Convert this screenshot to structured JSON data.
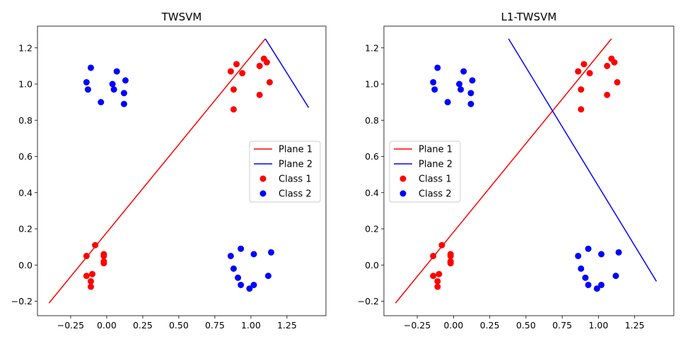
{
  "figure": {
    "background": "#ffffff"
  },
  "chart_data": [
    {
      "type": "scatter",
      "title": "TWSVM",
      "xlabel": "",
      "ylabel": "",
      "xlim": [
        -0.48,
        1.52
      ],
      "ylim": [
        -0.28,
        1.32
      ],
      "x_ticks": [
        -0.25,
        0.0,
        0.25,
        0.5,
        0.75,
        1.0,
        1.25
      ],
      "x_tick_labels": [
        "−0.25",
        "0.00",
        "0.25",
        "0.50",
        "0.75",
        "1.00",
        "1.25"
      ],
      "y_ticks": [
        -0.2,
        0.0,
        0.2,
        0.4,
        0.6,
        0.8,
        1.0,
        1.2
      ],
      "y_tick_labels": [
        "−0.2",
        "0.0",
        "0.2",
        "0.4",
        "0.6",
        "0.8",
        "1.0",
        "1.2"
      ],
      "grid": false,
      "legend_position": "center-right",
      "lines": [
        {
          "name": "Plane 1",
          "color": "#ff0000",
          "points": [
            [
              -0.4,
              -0.21
            ],
            [
              1.1,
              1.25
            ]
          ]
        },
        {
          "name": "Plane 2",
          "color": "#0000ff",
          "points": [
            [
              1.1,
              1.25
            ],
            [
              1.4,
              0.87
            ]
          ]
        }
      ],
      "scatter": [
        {
          "name": "Class 1",
          "color": "#ff0000",
          "points": [
            [
              -0.08,
              0.11
            ],
            [
              -0.14,
              0.05
            ],
            [
              -0.02,
              0.06
            ],
            [
              -0.02,
              0.05
            ],
            [
              -0.02,
              0.02
            ],
            [
              -0.02,
              0.01
            ],
            [
              -0.14,
              -0.06
            ],
            [
              -0.1,
              -0.05
            ],
            [
              -0.11,
              -0.09
            ],
            [
              -0.11,
              -0.12
            ],
            [
              0.86,
              1.07
            ],
            [
              0.9,
              1.11
            ],
            [
              0.94,
              1.06
            ],
            [
              1.06,
              1.1
            ],
            [
              1.09,
              1.14
            ],
            [
              1.11,
              1.12
            ],
            [
              0.88,
              0.97
            ],
            [
              1.13,
              1.01
            ],
            [
              1.06,
              0.94
            ],
            [
              0.88,
              0.86
            ]
          ]
        },
        {
          "name": "Class 2",
          "color": "#0000ff",
          "points": [
            [
              -0.11,
              1.09
            ],
            [
              0.07,
              1.07
            ],
            [
              0.13,
              1.02
            ],
            [
              -0.14,
              1.01
            ],
            [
              0.04,
              1.0
            ],
            [
              -0.13,
              0.97
            ],
            [
              0.05,
              0.97
            ],
            [
              0.12,
              0.95
            ],
            [
              -0.04,
              0.9
            ],
            [
              0.12,
              0.89
            ],
            [
              0.93,
              0.09
            ],
            [
              0.86,
              0.05
            ],
            [
              1.02,
              0.06
            ],
            [
              1.14,
              0.07
            ],
            [
              0.88,
              -0.02
            ],
            [
              0.91,
              -0.07
            ],
            [
              1.12,
              -0.06
            ],
            [
              0.93,
              -0.11
            ],
            [
              1.02,
              -0.11
            ],
            [
              0.99,
              -0.13
            ]
          ]
        }
      ]
    },
    {
      "type": "scatter",
      "title": "L1-TWSVM",
      "xlabel": "",
      "ylabel": "",
      "xlim": [
        -0.48,
        1.52
      ],
      "ylim": [
        -0.28,
        1.32
      ],
      "x_ticks": [
        -0.25,
        0.0,
        0.25,
        0.5,
        0.75,
        1.0,
        1.25
      ],
      "x_tick_labels": [
        "−0.25",
        "0.00",
        "0.25",
        "0.50",
        "0.75",
        "1.00",
        "1.25"
      ],
      "y_ticks": [
        -0.2,
        0.0,
        0.2,
        0.4,
        0.6,
        0.8,
        1.0,
        1.2
      ],
      "y_tick_labels": [
        "−0.2",
        "0.0",
        "0.2",
        "0.4",
        "0.6",
        "0.8",
        "1.0",
        "1.2"
      ],
      "grid": false,
      "legend_position": "center-left",
      "lines": [
        {
          "name": "Plane 1",
          "color": "#ff0000",
          "points": [
            [
              -0.4,
              -0.21
            ],
            [
              1.09,
              1.25
            ]
          ]
        },
        {
          "name": "Plane 2",
          "color": "#0000ff",
          "points": [
            [
              0.38,
              1.25
            ],
            [
              1.4,
              -0.09
            ]
          ]
        }
      ],
      "scatter": [
        {
          "name": "Class 1",
          "color": "#ff0000",
          "points": [
            [
              -0.08,
              0.11
            ],
            [
              -0.14,
              0.05
            ],
            [
              -0.02,
              0.06
            ],
            [
              -0.02,
              0.05
            ],
            [
              -0.02,
              0.02
            ],
            [
              -0.02,
              0.01
            ],
            [
              -0.14,
              -0.06
            ],
            [
              -0.1,
              -0.05
            ],
            [
              -0.11,
              -0.09
            ],
            [
              -0.11,
              -0.12
            ],
            [
              0.86,
              1.07
            ],
            [
              0.9,
              1.11
            ],
            [
              0.94,
              1.06
            ],
            [
              1.06,
              1.1
            ],
            [
              1.09,
              1.14
            ],
            [
              1.11,
              1.12
            ],
            [
              0.88,
              0.97
            ],
            [
              1.13,
              1.01
            ],
            [
              1.06,
              0.94
            ],
            [
              0.88,
              0.86
            ]
          ]
        },
        {
          "name": "Class 2",
          "color": "#0000ff",
          "points": [
            [
              -0.11,
              1.09
            ],
            [
              0.07,
              1.07
            ],
            [
              0.13,
              1.02
            ],
            [
              -0.14,
              1.01
            ],
            [
              0.04,
              1.0
            ],
            [
              -0.13,
              0.97
            ],
            [
              0.05,
              0.97
            ],
            [
              0.12,
              0.95
            ],
            [
              -0.04,
              0.9
            ],
            [
              0.12,
              0.89
            ],
            [
              0.93,
              0.09
            ],
            [
              0.86,
              0.05
            ],
            [
              1.02,
              0.06
            ],
            [
              1.14,
              0.07
            ],
            [
              0.88,
              -0.02
            ],
            [
              0.91,
              -0.07
            ],
            [
              1.12,
              -0.06
            ],
            [
              0.93,
              -0.11
            ],
            [
              1.02,
              -0.11
            ],
            [
              0.99,
              -0.13
            ]
          ]
        }
      ]
    }
  ]
}
